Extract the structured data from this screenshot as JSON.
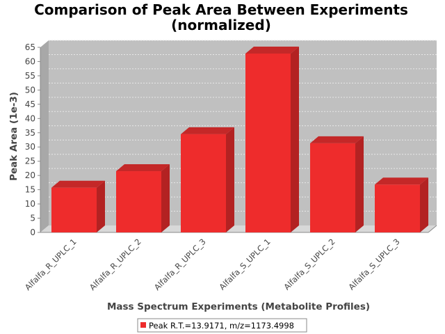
{
  "chart_data": {
    "type": "bar",
    "title": "Comparison of Peak Area Between Experiments",
    "subtitle": "(normalized)",
    "xlabel": "Mass Spectrum Experiments (Metabolite Profiles)",
    "ylabel": "Peak Area (1e-3)",
    "categories": [
      "Alfalfa_R_UPLC_1",
      "Alfalfa_R_UPLC_2",
      "Alfalfa_R_UPLC_3",
      "Alfalfa_S_UPLC_1",
      "Alfalfa_S_UPLC_2",
      "Alfalfa_S_UPLC_3"
    ],
    "series": [
      {
        "name": "Peak R.T.=13.9171, m/z=1173.4998",
        "values": [
          15.7,
          21.5,
          34.5,
          62.8,
          31.3,
          16.8
        ],
        "color": "#ee2c2c"
      }
    ],
    "ylim": [
      0,
      65
    ],
    "yticks": [
      0,
      5,
      10,
      15,
      20,
      25,
      30,
      35,
      40,
      45,
      50,
      55,
      60,
      65
    ],
    "grid": true,
    "legend_position": "bottom",
    "colors": {
      "plot_background": "#c0c0c0",
      "bar": "#ee2c2c",
      "bar_side": "#b32222",
      "bar_top": "#c42828"
    }
  }
}
